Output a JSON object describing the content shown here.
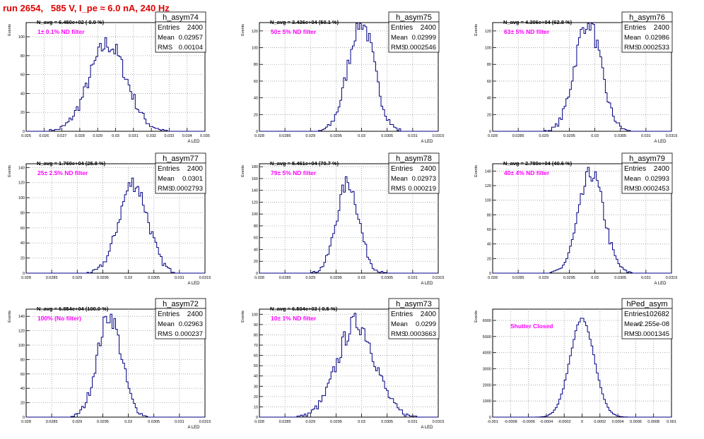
{
  "run_title": "run 2654,   585 V, I_pe ≈ 6.0 nA, 240 Hz",
  "colors": {
    "hist": "#000080",
    "note": "#ff00ff",
    "title": "#e00000",
    "grid": "#9a9a9a"
  },
  "chart_data": [
    {
      "type": "histogram",
      "name": "h_asym74",
      "ylabel": "Events",
      "xlabel": "A_LED",
      "navg": "N_avg = 6.450e+02 ( 0.9 %)",
      "note": "1± 0.1% ND filter",
      "stats": [
        [
          "Entries",
          "2400"
        ],
        [
          "Mean",
          "0.02957"
        ],
        [
          "RMS",
          "0.00104"
        ]
      ],
      "xlim": [
        0.025,
        0.035
      ],
      "ylim": [
        0,
        115
      ],
      "xticks": [
        0.025,
        0.026,
        0.027,
        0.028,
        0.029,
        0.03,
        0.031,
        0.032,
        0.033,
        0.034,
        0.035
      ],
      "xticklabels": [
        "0.025",
        "0.026",
        "0.027",
        "0.028",
        "0.029",
        "0.03",
        "0.031",
        "0.032",
        "0.033",
        "0.034",
        "0.035"
      ],
      "yticks": [
        0,
        20,
        40,
        60,
        80,
        100
      ],
      "mean": 0.02957,
      "rms": 0.00104,
      "entries": 2400
    },
    {
      "type": "histogram",
      "name": "h_asym75",
      "ylabel": "Events",
      "xlabel": "A_LED",
      "navg": "N_avg = 3.436e+04 (50.1 %)",
      "note": "50± 5% ND filter",
      "stats": [
        [
          "Entries",
          "2400"
        ],
        [
          "Mean",
          "0.02999"
        ],
        [
          "RMS",
          "0.0002546"
        ]
      ],
      "xlim": [
        0.028,
        0.0315
      ],
      "ylim": [
        0,
        130
      ],
      "xticks": [
        0.028,
        0.0285,
        0.029,
        0.0295,
        0.03,
        0.0305,
        0.031,
        0.0315
      ],
      "xticklabels": [
        "0.028",
        "0.0285",
        "0.029",
        "0.0295",
        "0.03",
        "0.0305",
        "0.031",
        "0.0315"
      ],
      "yticks": [
        0,
        20,
        40,
        60,
        80,
        100,
        120
      ],
      "mean": 0.02999,
      "rms": 0.0002546,
      "entries": 2400
    },
    {
      "type": "histogram",
      "name": "h_asym76",
      "ylabel": "Events",
      "xlabel": "A_LED",
      "navg": "N_avg = 4.306e+04 (62.8 %)",
      "note": "63± 5% ND filter",
      "stats": [
        [
          "Entries",
          "2400"
        ],
        [
          "Mean",
          "0.02986"
        ],
        [
          "RMS",
          "0.0002533"
        ]
      ],
      "xlim": [
        0.028,
        0.0315
      ],
      "ylim": [
        0,
        130
      ],
      "xticks": [
        0.028,
        0.0285,
        0.029,
        0.0295,
        0.03,
        0.0305,
        0.031,
        0.0315
      ],
      "xticklabels": [
        "0.028",
        "0.0285",
        "0.029",
        "0.0295",
        "0.03",
        "0.0305",
        "0.031",
        "0.0315"
      ],
      "yticks": [
        0,
        20,
        40,
        60,
        80,
        100,
        120
      ],
      "mean": 0.02986,
      "rms": 0.0002533,
      "entries": 2400
    },
    {
      "type": "histogram",
      "name": "h_asym77",
      "ylabel": "Events",
      "xlabel": "A_LED",
      "navg": "N_avg = 1.769e+04 (25.8 %)",
      "note": "25± 2.5% ND filter",
      "stats": [
        [
          "Entries",
          "2400"
        ],
        [
          "Mean",
          "0.0301"
        ],
        [
          "RMS",
          "0.0002793"
        ]
      ],
      "xlim": [
        0.028,
        0.0315
      ],
      "ylim": [
        0,
        145
      ],
      "xticks": [
        0.028,
        0.0285,
        0.029,
        0.0295,
        0.03,
        0.0305,
        0.031,
        0.0315
      ],
      "xticklabels": [
        "0.028",
        "0.0285",
        "0.029",
        "0.0295",
        "0.03",
        "0.0305",
        "0.031",
        "0.0315"
      ],
      "yticks": [
        0,
        20,
        40,
        60,
        80,
        100,
        120,
        140
      ],
      "mean": 0.0301,
      "rms": 0.0002793,
      "entries": 2400
    },
    {
      "type": "histogram",
      "name": "h_asym78",
      "ylabel": "Events",
      "xlabel": "A_LED",
      "navg": "N_avg = 5.461e+04 (79.7 %)",
      "note": "79± 5% ND filter",
      "stats": [
        [
          "Entries",
          "2400"
        ],
        [
          "Mean",
          "0.02973"
        ],
        [
          "RMS",
          "0.000219"
        ]
      ],
      "xlim": [
        0.028,
        0.0315
      ],
      "ylim": [
        0,
        185
      ],
      "xticks": [
        0.028,
        0.0285,
        0.029,
        0.0295,
        0.03,
        0.0305,
        0.031,
        0.0315
      ],
      "xticklabels": [
        "0.028",
        "0.0285",
        "0.029",
        "0.0295",
        "0.03",
        "0.0305",
        "0.031",
        "0.0315"
      ],
      "yticks": [
        0,
        20,
        40,
        60,
        80,
        100,
        120,
        140,
        160,
        180
      ],
      "mean": 0.02973,
      "rms": 0.000219,
      "entries": 2400
    },
    {
      "type": "histogram",
      "name": "h_asym79",
      "ylabel": "Events",
      "xlabel": "A_LED",
      "navg": "N_avg = 2.780e+04 (40.6 %)",
      "note": "40± 4% ND filter",
      "stats": [
        [
          "Entries",
          "2400"
        ],
        [
          "Mean",
          "0.02993"
        ],
        [
          "RMS",
          "0.0002453"
        ]
      ],
      "xlim": [
        0.028,
        0.0315
      ],
      "ylim": [
        0,
        150
      ],
      "xticks": [
        0.028,
        0.0285,
        0.029,
        0.0295,
        0.03,
        0.0305,
        0.031,
        0.0315
      ],
      "xticklabels": [
        "0.028",
        "0.0285",
        "0.029",
        "0.0295",
        "0.03",
        "0.0305",
        "0.031",
        "0.0315"
      ],
      "yticks": [
        0,
        20,
        40,
        60,
        80,
        100,
        120,
        140
      ],
      "mean": 0.02993,
      "rms": 0.0002453,
      "entries": 2400
    },
    {
      "type": "histogram",
      "name": "h_asym72",
      "ylabel": "Events",
      "xlabel": "A_LED",
      "navg": "N_avg = 6.854e+04 (100.0 %)",
      "note": "100% (No filter)",
      "stats": [
        [
          "Entries",
          "2400"
        ],
        [
          "Mean",
          "0.02963"
        ],
        [
          "RMS",
          "0.000237"
        ]
      ],
      "xlim": [
        0.028,
        0.0315
      ],
      "ylim": [
        0,
        150
      ],
      "xticks": [
        0.028,
        0.0285,
        0.029,
        0.0295,
        0.03,
        0.0305,
        0.031,
        0.0315
      ],
      "xticklabels": [
        "0.028",
        "0.0285",
        "0.029",
        "0.0295",
        "0.03",
        "0.0305",
        "0.031",
        "0.0315"
      ],
      "yticks": [
        0,
        20,
        40,
        60,
        80,
        100,
        120,
        140
      ],
      "mean": 0.02963,
      "rms": 0.000237,
      "entries": 2400
    },
    {
      "type": "histogram",
      "name": "h_asym73",
      "ylabel": "Events",
      "xlabel": "A_LED",
      "navg": "N_avg = 6.504e+03 ( 9.5 %)",
      "note": "10± 1% ND filter",
      "stats": [
        [
          "Entries",
          "2400"
        ],
        [
          "Mean",
          "0.0299"
        ],
        [
          "RMS",
          "0.0003663"
        ]
      ],
      "xlim": [
        0.028,
        0.0315
      ],
      "ylim": [
        0,
        105
      ],
      "xticks": [
        0.028,
        0.0285,
        0.029,
        0.0295,
        0.03,
        0.0305,
        0.031,
        0.0315
      ],
      "xticklabels": [
        "0.028",
        "0.0285",
        "0.029",
        "0.0295",
        "0.03",
        "0.0305",
        "0.031",
        "0.0315"
      ],
      "yticks": [
        0,
        10,
        20,
        30,
        40,
        50,
        60,
        70,
        80,
        90,
        100
      ],
      "mean": 0.0299,
      "rms": 0.0003663,
      "entries": 2400
    },
    {
      "type": "histogram",
      "name": "hPed_asym",
      "ylabel": "Events",
      "xlabel": "",
      "navg": "",
      "note": "Shutter Closed",
      "stats": [
        [
          "Entries",
          "102682"
        ],
        [
          "Mean",
          "-2.255e-08"
        ],
        [
          "RMS",
          "0.0001345"
        ]
      ],
      "xlim": [
        -0.001,
        0.001
      ],
      "ylim": [
        0,
        6700
      ],
      "xticks": [
        -0.001,
        -0.0008,
        -0.0006,
        -0.0004,
        -0.0002,
        0,
        0.0002,
        0.0004,
        0.0006,
        0.0008,
        0.001
      ],
      "xticklabels": [
        "-0.001",
        "-0.0008",
        "-0.0006",
        "-0.0004",
        "-0.0002",
        "0",
        "0.0002",
        "0.0004",
        "0.0006",
        "0.0008",
        "0.001"
      ],
      "yticks": [
        0,
        1000,
        2000,
        3000,
        4000,
        5000,
        6000
      ],
      "mean": 0,
      "rms": 0.0001345,
      "entries": 102682
    }
  ]
}
